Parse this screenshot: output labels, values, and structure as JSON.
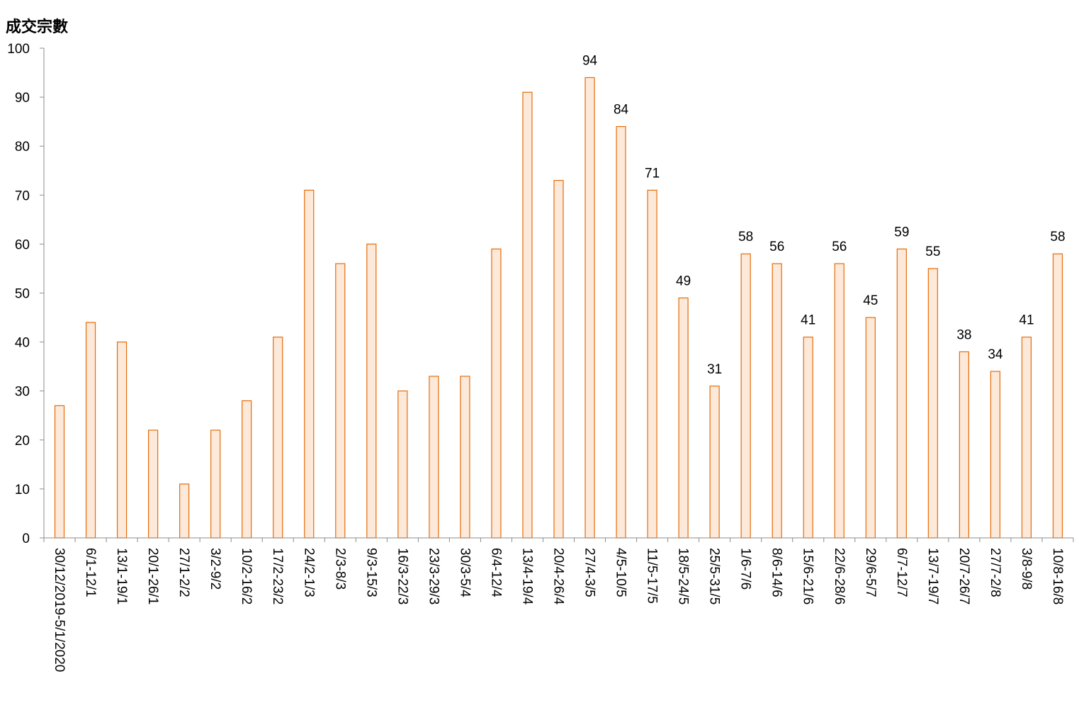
{
  "chart_data": {
    "type": "bar",
    "ylabel": "成交宗數",
    "ylim": [
      0,
      100
    ],
    "yticks": [
      0,
      10,
      20,
      30,
      40,
      50,
      60,
      70,
      80,
      90,
      100
    ],
    "categories": [
      "30/12/2019-5/1/2020",
      "6/1-12/1",
      "13/1-19/1",
      "20/1-26/1",
      "27/1-2/2",
      "3/2-9/2",
      "10/2-16/2",
      "17/2-23/2",
      "24/2-1/3",
      "2/3-8/3",
      "9/3-15/3",
      "16/3-22/3",
      "23/3-29/3",
      "30/3-5/4",
      "6/4-12/4",
      "13/4-19/4",
      "20/4-26/4",
      "27/4-3/5",
      "4/5-10/5",
      "11/5-17/5",
      "18/5-24/5",
      "25/5-31/5",
      "1/6-7/6",
      "8/6-14/6",
      "15/6-21/6",
      "22/6-28/6",
      "29/6-5/7",
      "6/7-12/7",
      "13/7-19/7",
      "20/7-26/7",
      "27/7-2/8",
      "3/8-9/8",
      "10/8-16/8"
    ],
    "values": [
      27,
      44,
      40,
      22,
      11,
      22,
      28,
      41,
      71,
      56,
      60,
      30,
      33,
      33,
      59,
      91,
      73,
      94,
      84,
      71,
      49,
      31,
      58,
      56,
      41,
      56,
      45,
      59,
      55,
      38,
      34,
      41,
      58
    ],
    "data_labels": [
      null,
      null,
      null,
      null,
      null,
      null,
      null,
      null,
      null,
      null,
      null,
      null,
      null,
      null,
      null,
      null,
      null,
      94,
      84,
      71,
      49,
      31,
      58,
      56,
      41,
      56,
      45,
      59,
      55,
      38,
      34,
      41,
      58
    ],
    "colors": {
      "bar_fill": "#fde9d9",
      "bar_stroke": "#e46c0a",
      "axis": "#8c8c8c"
    },
    "grid": false,
    "legend": "none"
  }
}
